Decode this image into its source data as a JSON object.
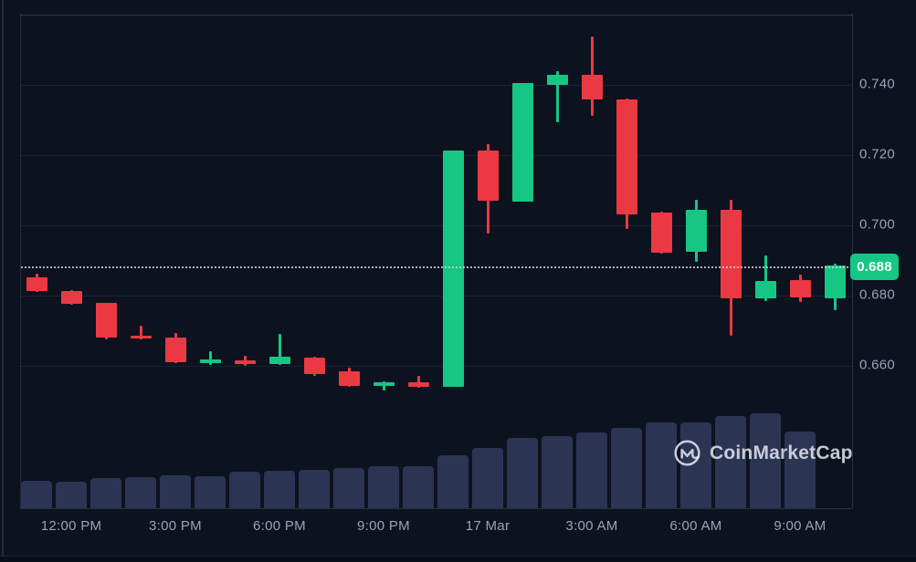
{
  "app": {
    "watermark_text": "CoinMarketCap"
  },
  "colors": {
    "background": "#0d121f",
    "up_green": "#16c784",
    "down_red": "#ea3943",
    "volume_bar": "#2c3454",
    "axis_text": "#99a2b6",
    "badge_bg": "#16c784",
    "badge_text": "#ffffff"
  },
  "price_axis": {
    "current_price_label": "0.688",
    "tick_labels": [
      "0.740",
      "0.720",
      "0.700",
      "0.680",
      "0.660"
    ]
  },
  "time_axis": {
    "tick_labels": [
      "12:00 PM",
      "3:00 PM",
      "6:00 PM",
      "9:00 PM",
      "17 Mar",
      "3:00 AM",
      "6:00 AM",
      "9:00 AM"
    ]
  },
  "chart_data": {
    "type": "candlestick",
    "subtype": "price-with-volume",
    "interval": "1h",
    "title": "",
    "xlabel": "",
    "ylabel": "",
    "grid": "horizontal-only",
    "legend": "none",
    "ylim": [
      0.62,
      0.762
    ],
    "current_price": 0.688,
    "y_gridlines": [
      {
        "price": 0.76,
        "label": ""
      },
      {
        "price": 0.74,
        "label": "0.740"
      },
      {
        "price": 0.72,
        "label": "0.720"
      },
      {
        "price": 0.7,
        "label": "0.700"
      },
      {
        "price": 0.68,
        "label": "0.680"
      },
      {
        "price": 0.66,
        "label": "0.660"
      }
    ],
    "x_ticks": [
      {
        "label": "12:00 PM",
        "candle_index": 1
      },
      {
        "label": "3:00 PM",
        "candle_index": 4
      },
      {
        "label": "6:00 PM",
        "candle_index": 7
      },
      {
        "label": "9:00 PM",
        "candle_index": 10
      },
      {
        "label": "17 Mar",
        "candle_index": 13
      },
      {
        "label": "3:00 AM",
        "candle_index": 16
      },
      {
        "label": "6:00 AM",
        "candle_index": 19
      },
      {
        "label": "9:00 AM",
        "candle_index": 22
      }
    ],
    "candles": [
      {
        "time": "11:00 AM",
        "open": 0.6852,
        "high": 0.6862,
        "low": 0.681,
        "close": 0.6813,
        "volume_rel": 0.29
      },
      {
        "time": "12:00 PM",
        "open": 0.6813,
        "high": 0.6816,
        "low": 0.6775,
        "close": 0.6777,
        "volume_rel": 0.28
      },
      {
        "time": "1:00 PM",
        "open": 0.6779,
        "high": 0.6779,
        "low": 0.6675,
        "close": 0.6681,
        "volume_rel": 0.32
      },
      {
        "time": "2:00 PM",
        "open": 0.6686,
        "high": 0.6714,
        "low": 0.6676,
        "close": 0.6678,
        "volume_rel": 0.33
      },
      {
        "time": "3:00 PM",
        "open": 0.6681,
        "high": 0.6694,
        "low": 0.6608,
        "close": 0.661,
        "volume_rel": 0.35
      },
      {
        "time": "4:00 PM",
        "open": 0.6608,
        "high": 0.6642,
        "low": 0.6603,
        "close": 0.6618,
        "volume_rel": 0.34
      },
      {
        "time": "5:00 PM",
        "open": 0.6616,
        "high": 0.6629,
        "low": 0.66,
        "close": 0.6605,
        "volume_rel": 0.38
      },
      {
        "time": "6:00 PM",
        "open": 0.6605,
        "high": 0.6691,
        "low": 0.6603,
        "close": 0.6626,
        "volume_rel": 0.39
      },
      {
        "time": "7:00 PM",
        "open": 0.6623,
        "high": 0.6625,
        "low": 0.6571,
        "close": 0.6577,
        "volume_rel": 0.4
      },
      {
        "time": "8:00 PM",
        "open": 0.6584,
        "high": 0.6595,
        "low": 0.6541,
        "close": 0.6543,
        "volume_rel": 0.42
      },
      {
        "time": "9:00 PM",
        "open": 0.6543,
        "high": 0.6556,
        "low": 0.653,
        "close": 0.6553,
        "volume_rel": 0.44
      },
      {
        "time": "10:00 PM",
        "open": 0.6553,
        "high": 0.6571,
        "low": 0.6538,
        "close": 0.654,
        "volume_rel": 0.44
      },
      {
        "time": "11:00 PM",
        "open": 0.654,
        "high": 0.7213,
        "low": 0.654,
        "close": 0.7213,
        "volume_rel": 0.56
      },
      {
        "time": "12:00 AM",
        "open": 0.7213,
        "high": 0.7231,
        "low": 0.6977,
        "close": 0.707,
        "volume_rel": 0.63
      },
      {
        "time": "1:00 AM",
        "open": 0.7068,
        "high": 0.7405,
        "low": 0.7068,
        "close": 0.7405,
        "volume_rel": 0.74
      },
      {
        "time": "2:00 AM",
        "open": 0.74,
        "high": 0.7439,
        "low": 0.7294,
        "close": 0.7429,
        "volume_rel": 0.76
      },
      {
        "time": "3:00 AM",
        "open": 0.7429,
        "high": 0.7538,
        "low": 0.7312,
        "close": 0.7358,
        "volume_rel": 0.8
      },
      {
        "time": "4:00 AM",
        "open": 0.7358,
        "high": 0.736,
        "low": 0.699,
        "close": 0.7031,
        "volume_rel": 0.85
      },
      {
        "time": "5:00 AM",
        "open": 0.7036,
        "high": 0.704,
        "low": 0.692,
        "close": 0.6922,
        "volume_rel": 0.9
      },
      {
        "time": "6:00 AM",
        "open": 0.6925,
        "high": 0.7073,
        "low": 0.6896,
        "close": 0.7044,
        "volume_rel": 0.9
      },
      {
        "time": "7:00 AM",
        "open": 0.7044,
        "high": 0.7073,
        "low": 0.6686,
        "close": 0.6792,
        "volume_rel": 0.97
      },
      {
        "time": "8:00 AM",
        "open": 0.6792,
        "high": 0.6914,
        "low": 0.6784,
        "close": 0.6842,
        "volume_rel": 1.0
      },
      {
        "time": "9:00 AM",
        "open": 0.6844,
        "high": 0.686,
        "low": 0.6782,
        "close": 0.6795,
        "volume_rel": 0.81
      },
      {
        "time": "10:00 AM",
        "open": 0.6792,
        "high": 0.689,
        "low": 0.6758,
        "close": 0.6886,
        "volume_rel": 0.0
      }
    ]
  }
}
